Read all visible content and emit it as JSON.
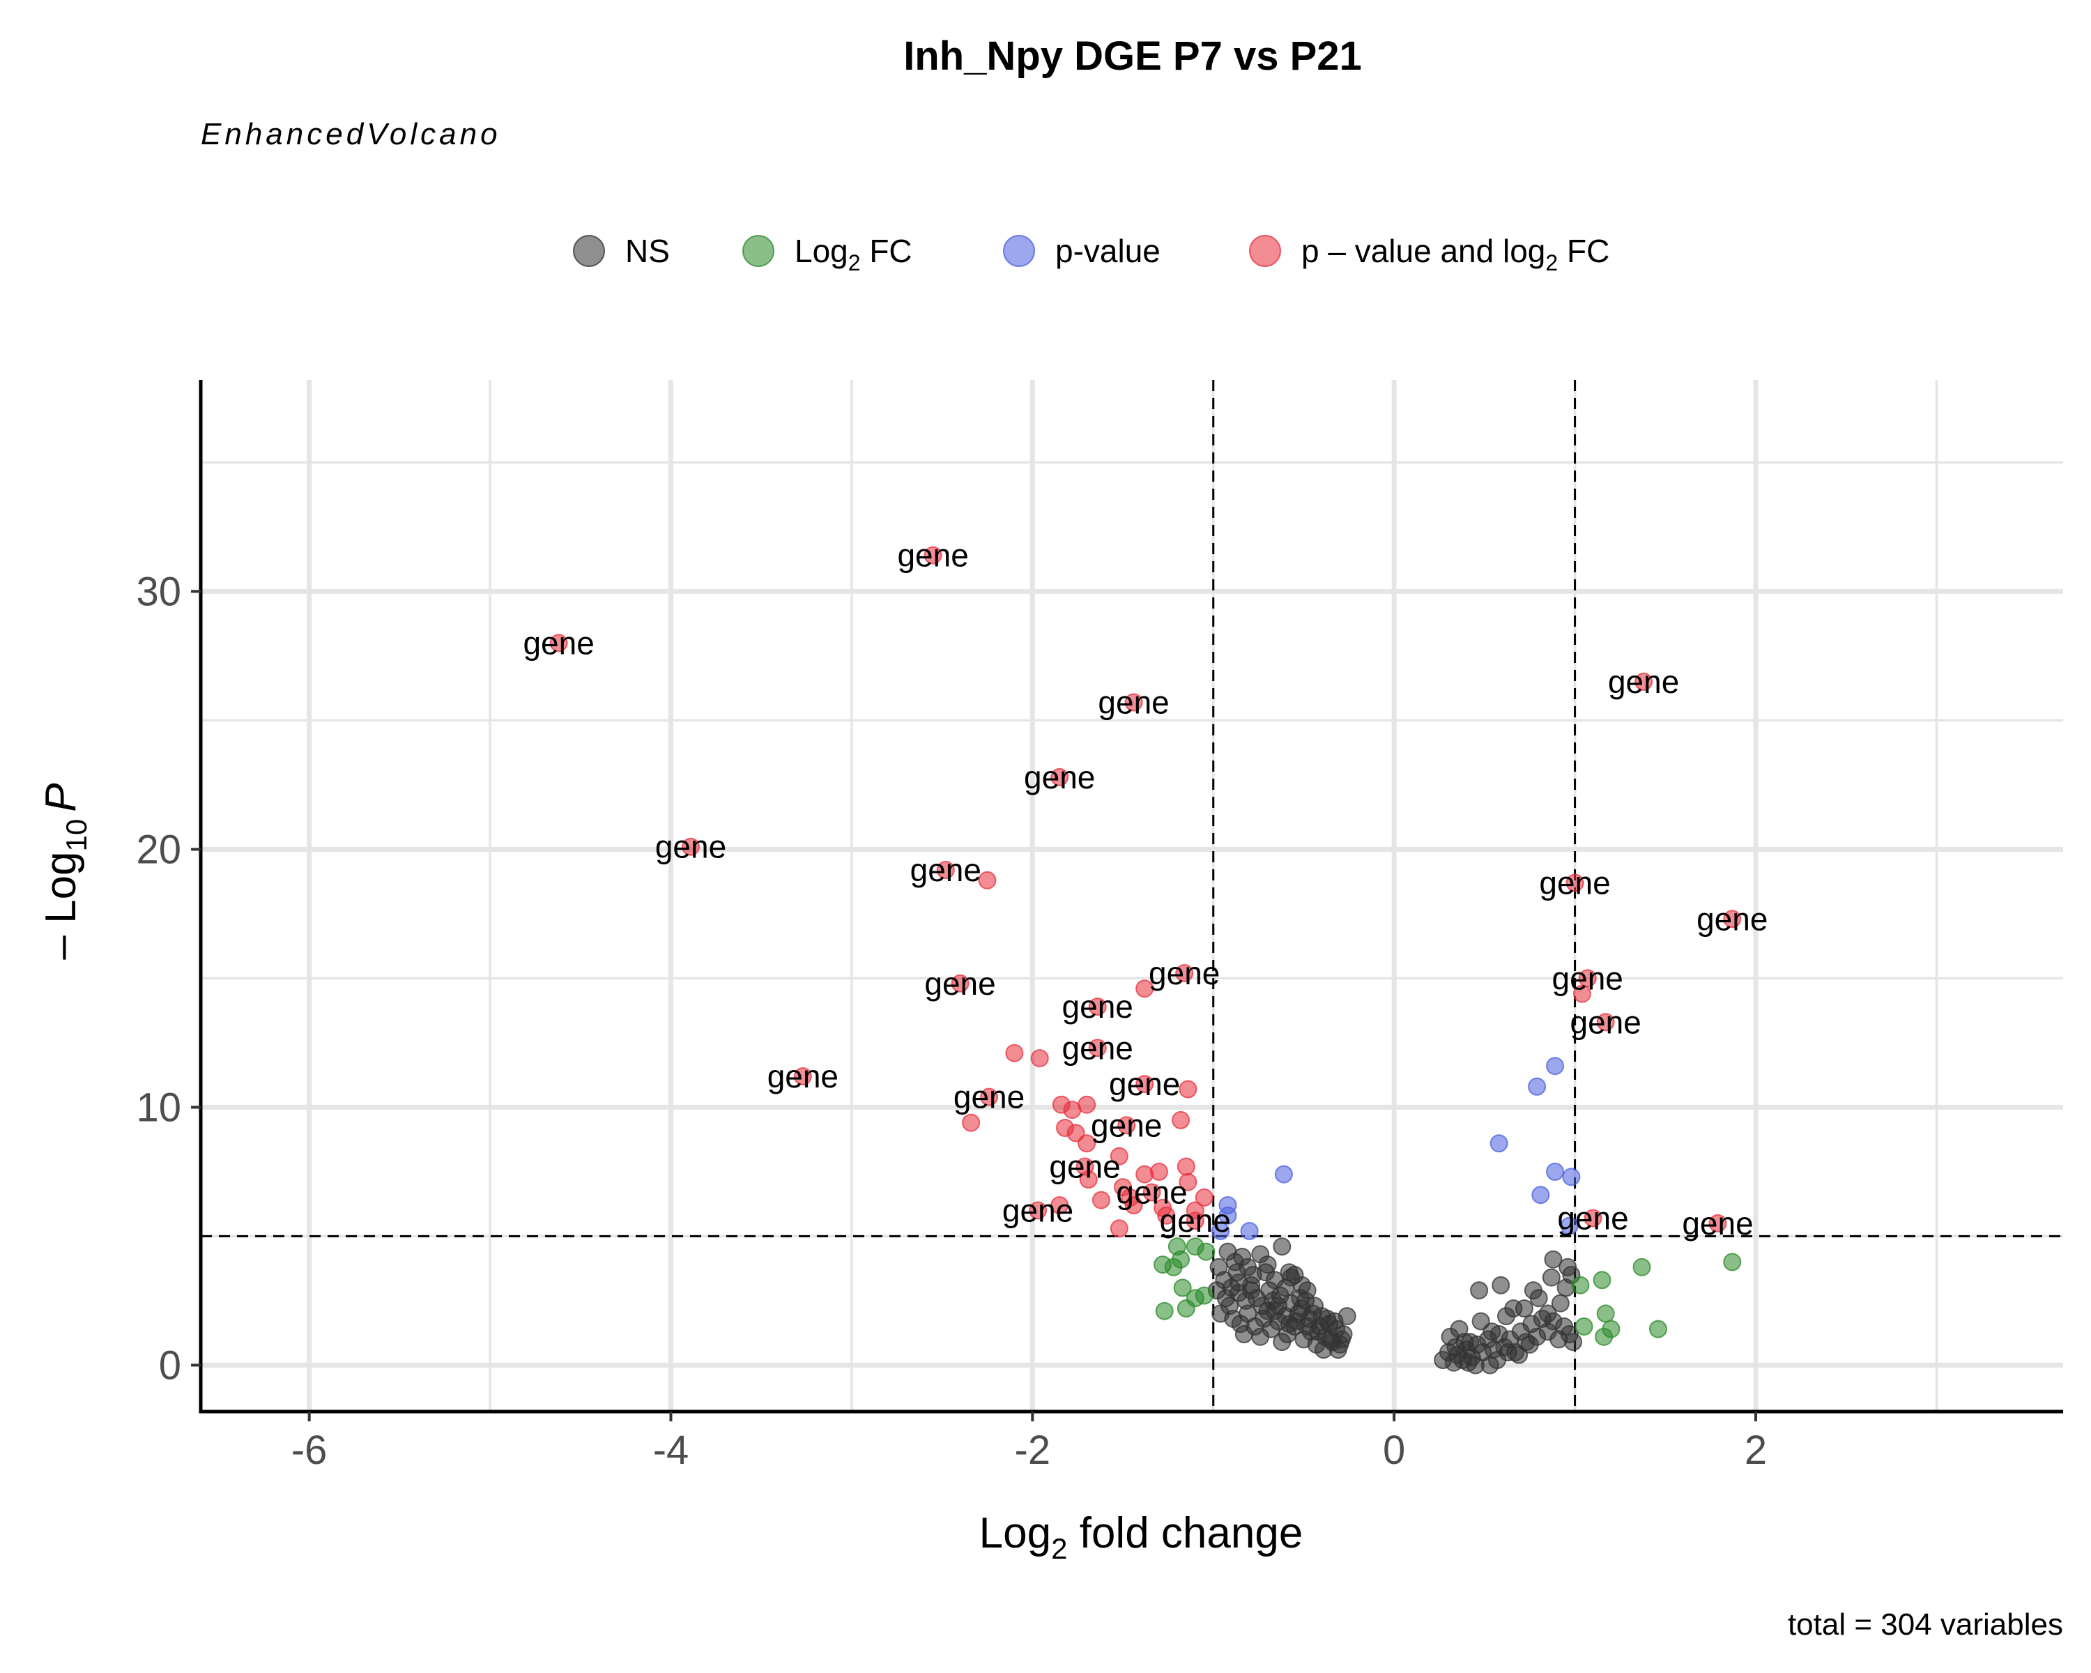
{
  "chart_data": {
    "type": "scatter",
    "title": "Inh_Npy DGE P7 vs P21",
    "subtitle": "EnhancedVolcano",
    "caption": "total = 304 variables",
    "xlabel": {
      "main": "Log",
      "sub": "2",
      "rest": " fold change"
    },
    "ylabel": {
      "prefix": "– Log",
      "sub": "10",
      "italic": "P"
    },
    "xlim": [
      -6.6,
      3.7
    ],
    "ylim": [
      -1.8,
      38.2
    ],
    "x_ticks": [
      -6,
      -4,
      -2,
      0,
      2
    ],
    "y_ticks": [
      0,
      10,
      20,
      30
    ],
    "grid": true,
    "fc_cutoff": 1,
    "p_cutoff_log10": 5,
    "colors": {
      "NS": "#333333",
      "FC": "#2a8a2a",
      "P": "#4a5fe0",
      "FC_P": "#e8303c",
      "grid": "#e5e5e5",
      "axis": "#000000"
    },
    "legend": {
      "position": "top",
      "items": [
        {
          "key": "NS",
          "label": "NS"
        },
        {
          "key": "FC",
          "label": "Log",
          "sub": "2",
          "rest": " FC"
        },
        {
          "key": "P",
          "label": "p-value"
        },
        {
          "key": "FC_P",
          "label": "p – value and log",
          "sub": "2",
          "rest": " FC"
        }
      ]
    },
    "series": [
      {
        "name": "p – value and log₂ FC",
        "key": "FC_P",
        "points": [
          {
            "x": -2.55,
            "y": 31.4,
            "label": "gene"
          },
          {
            "x": -4.62,
            "y": 28.0,
            "label": "gene"
          },
          {
            "x": -1.44,
            "y": 25.7,
            "label": "gene"
          },
          {
            "x": -1.85,
            "y": 22.8,
            "label": "gene"
          },
          {
            "x": -3.89,
            "y": 20.1,
            "label": "gene"
          },
          {
            "x": -2.48,
            "y": 19.2,
            "label": "gene"
          },
          {
            "x": -2.25,
            "y": 18.8
          },
          {
            "x": -1.16,
            "y": 15.2,
            "label": "gene"
          },
          {
            "x": -1.38,
            "y": 14.6
          },
          {
            "x": -2.4,
            "y": 14.8,
            "label": "gene"
          },
          {
            "x": -1.64,
            "y": 13.9,
            "label": "gene"
          },
          {
            "x": -2.1,
            "y": 12.1
          },
          {
            "x": -1.96,
            "y": 11.9
          },
          {
            "x": -1.64,
            "y": 12.3,
            "label": "gene"
          },
          {
            "x": -3.27,
            "y": 11.2,
            "label": "gene"
          },
          {
            "x": -1.38,
            "y": 10.9,
            "label": "gene"
          },
          {
            "x": -1.14,
            "y": 10.7
          },
          {
            "x": -2.24,
            "y": 10.4,
            "label": "gene"
          },
          {
            "x": -1.84,
            "y": 10.1
          },
          {
            "x": -1.78,
            "y": 9.9
          },
          {
            "x": -1.7,
            "y": 10.1
          },
          {
            "x": -1.18,
            "y": 9.5
          },
          {
            "x": -2.34,
            "y": 9.4
          },
          {
            "x": -1.82,
            "y": 9.2
          },
          {
            "x": -1.76,
            "y": 9.0
          },
          {
            "x": -1.48,
            "y": 9.3,
            "label": "gene"
          },
          {
            "x": -1.7,
            "y": 8.6
          },
          {
            "x": -1.52,
            "y": 8.1
          },
          {
            "x": -1.71,
            "y": 7.7,
            "label": "gene"
          },
          {
            "x": -1.38,
            "y": 7.4
          },
          {
            "x": -1.15,
            "y": 7.7
          },
          {
            "x": -1.69,
            "y": 7.2
          },
          {
            "x": -1.3,
            "y": 7.5
          },
          {
            "x": -1.14,
            "y": 7.1
          },
          {
            "x": -1.5,
            "y": 6.9
          },
          {
            "x": -1.34,
            "y": 6.7,
            "label": "gene"
          },
          {
            "x": -1.46,
            "y": 6.5
          },
          {
            "x": -1.62,
            "y": 6.4
          },
          {
            "x": -1.44,
            "y": 6.2
          },
          {
            "x": -1.28,
            "y": 6.1
          },
          {
            "x": -1.05,
            "y": 6.5
          },
          {
            "x": -1.1,
            "y": 6.0
          },
          {
            "x": -1.26,
            "y": 5.8
          },
          {
            "x": -1.85,
            "y": 6.2
          },
          {
            "x": -1.97,
            "y": 6.0,
            "label": "gene"
          },
          {
            "x": -1.52,
            "y": 5.3
          },
          {
            "x": -1.1,
            "y": 5.6,
            "label": "gene"
          },
          {
            "x": 1.38,
            "y": 26.5,
            "label": "gene"
          },
          {
            "x": 1.0,
            "y": 18.7,
            "label": "gene"
          },
          {
            "x": 1.87,
            "y": 17.3,
            "label": "gene"
          },
          {
            "x": 1.07,
            "y": 15.0,
            "label": "gene"
          },
          {
            "x": 1.04,
            "y": 14.4
          },
          {
            "x": 1.17,
            "y": 13.3,
            "label": "gene"
          },
          {
            "x": 1.1,
            "y": 5.7,
            "label": "gene"
          },
          {
            "x": 1.79,
            "y": 5.5,
            "label": "gene"
          }
        ]
      },
      {
        "name": "p-value",
        "key": "P",
        "points": [
          {
            "x": -0.61,
            "y": 7.4
          },
          {
            "x": -0.92,
            "y": 6.2
          },
          {
            "x": -0.92,
            "y": 5.8
          },
          {
            "x": -0.96,
            "y": 5.2
          },
          {
            "x": -0.8,
            "y": 5.2
          },
          {
            "x": 0.58,
            "y": 8.6
          },
          {
            "x": 0.79,
            "y": 10.8
          },
          {
            "x": 0.89,
            "y": 11.6
          },
          {
            "x": 0.89,
            "y": 7.5
          },
          {
            "x": 0.98,
            "y": 7.3
          },
          {
            "x": 0.81,
            "y": 6.6
          },
          {
            "x": 0.97,
            "y": 5.4
          }
        ]
      },
      {
        "name": "Log₂ FC",
        "key": "FC",
        "points": [
          {
            "x": -1.2,
            "y": 4.6
          },
          {
            "x": -1.1,
            "y": 4.6
          },
          {
            "x": -1.04,
            "y": 4.4
          },
          {
            "x": -1.18,
            "y": 4.1
          },
          {
            "x": -1.22,
            "y": 3.8
          },
          {
            "x": -1.28,
            "y": 3.9
          },
          {
            "x": -1.17,
            "y": 3.0
          },
          {
            "x": -1.05,
            "y": 2.7
          },
          {
            "x": -1.1,
            "y": 2.6
          },
          {
            "x": -1.15,
            "y": 2.2
          },
          {
            "x": -1.27,
            "y": 2.1
          },
          {
            "x": 1.03,
            "y": 3.1
          },
          {
            "x": 1.15,
            "y": 3.3
          },
          {
            "x": 1.37,
            "y": 3.8
          },
          {
            "x": 1.87,
            "y": 4.0
          },
          {
            "x": 1.17,
            "y": 2.0
          },
          {
            "x": 1.05,
            "y": 1.5
          },
          {
            "x": 1.2,
            "y": 1.4
          },
          {
            "x": 1.16,
            "y": 1.1
          },
          {
            "x": 1.46,
            "y": 1.4
          }
        ]
      },
      {
        "name": "NS",
        "key": "NS",
        "points": [
          {
            "x": -0.92,
            "y": 4.4
          },
          {
            "x": -0.88,
            "y": 4.0
          },
          {
            "x": -0.84,
            "y": 4.2
          },
          {
            "x": -0.81,
            "y": 3.8
          },
          {
            "x": -0.78,
            "y": 3.5
          },
          {
            "x": -0.74,
            "y": 4.3
          },
          {
            "x": -0.7,
            "y": 3.9
          },
          {
            "x": -0.66,
            "y": 3.3
          },
          {
            "x": -0.62,
            "y": 4.6
          },
          {
            "x": -0.58,
            "y": 3.6
          },
          {
            "x": -0.55,
            "y": 3.5
          },
          {
            "x": -0.51,
            "y": 3.1
          },
          {
            "x": -0.48,
            "y": 2.9
          },
          {
            "x": -0.94,
            "y": 3.3
          },
          {
            "x": -0.9,
            "y": 3.0
          },
          {
            "x": -0.86,
            "y": 2.8
          },
          {
            "x": -0.82,
            "y": 2.5
          },
          {
            "x": -0.79,
            "y": 3.1
          },
          {
            "x": -0.76,
            "y": 2.6
          },
          {
            "x": -0.73,
            "y": 2.3
          },
          {
            "x": -0.69,
            "y": 2.9
          },
          {
            "x": -0.66,
            "y": 2.1
          },
          {
            "x": -0.63,
            "y": 2.7
          },
          {
            "x": -0.6,
            "y": 1.9
          },
          {
            "x": -0.57,
            "y": 2.4
          },
          {
            "x": -0.54,
            "y": 1.7
          },
          {
            "x": -0.51,
            "y": 2.2
          },
          {
            "x": -0.48,
            "y": 1.5
          },
          {
            "x": -0.45,
            "y": 2.0
          },
          {
            "x": -0.42,
            "y": 1.3
          },
          {
            "x": -0.4,
            "y": 1.9
          },
          {
            "x": -0.38,
            "y": 1.1
          },
          {
            "x": -0.36,
            "y": 1.6
          },
          {
            "x": -0.34,
            "y": 0.9
          },
          {
            "x": -0.32,
            "y": 1.4
          },
          {
            "x": -0.3,
            "y": 0.8
          },
          {
            "x": -0.28,
            "y": 1.2
          },
          {
            "x": -0.26,
            "y": 1.9
          },
          {
            "x": -0.96,
            "y": 2.0
          },
          {
            "x": -0.93,
            "y": 2.6
          },
          {
            "x": -0.89,
            "y": 1.8
          },
          {
            "x": -0.85,
            "y": 1.6
          },
          {
            "x": -0.81,
            "y": 2.0
          },
          {
            "x": -0.77,
            "y": 1.5
          },
          {
            "x": -0.72,
            "y": 1.8
          },
          {
            "x": -0.68,
            "y": 1.4
          },
          {
            "x": -0.64,
            "y": 1.7
          },
          {
            "x": -0.59,
            "y": 1.2
          },
          {
            "x": -0.55,
            "y": 1.5
          },
          {
            "x": -0.5,
            "y": 1.0
          },
          {
            "x": -0.46,
            "y": 1.3
          },
          {
            "x": -0.43,
            "y": 0.8
          },
          {
            "x": -0.39,
            "y": 0.6
          },
          {
            "x": -0.35,
            "y": 1.0
          },
          {
            "x": -0.31,
            "y": 0.6
          },
          {
            "x": -0.52,
            "y": 2.6
          },
          {
            "x": -0.44,
            "y": 2.3
          },
          {
            "x": -0.37,
            "y": 1.8
          },
          {
            "x": -0.71,
            "y": 3.6
          },
          {
            "x": -0.6,
            "y": 3.0
          },
          {
            "x": -0.87,
            "y": 3.6
          },
          {
            "x": -0.97,
            "y": 3.8
          },
          {
            "x": -0.98,
            "y": 2.9
          },
          {
            "x": -0.83,
            "y": 1.2
          },
          {
            "x": -0.74,
            "y": 1.1
          },
          {
            "x": -0.62,
            "y": 0.9
          },
          {
            "x": -0.57,
            "y": 3.4
          },
          {
            "x": -0.67,
            "y": 2.5
          },
          {
            "x": -0.41,
            "y": 1.5
          },
          {
            "x": -0.33,
            "y": 1.7
          },
          {
            "x": -0.29,
            "y": 1.0
          },
          {
            "x": -0.47,
            "y": 1.8
          },
          {
            "x": -0.53,
            "y": 2.0
          },
          {
            "x": -0.79,
            "y": 2.9
          },
          {
            "x": -0.91,
            "y": 2.3
          },
          {
            "x": -0.86,
            "y": 3.2
          },
          {
            "x": -0.7,
            "y": 2.1
          },
          {
            "x": -0.64,
            "y": 2.3
          },
          {
            "x": -0.58,
            "y": 1.6
          },
          {
            "x": -0.49,
            "y": 2.5
          },
          {
            "x": 0.27,
            "y": 0.2
          },
          {
            "x": 0.3,
            "y": 0.5
          },
          {
            "x": 0.33,
            "y": 0.1
          },
          {
            "x": 0.35,
            "y": 0.4
          },
          {
            "x": 0.38,
            "y": 0.2
          },
          {
            "x": 0.4,
            "y": 0.6
          },
          {
            "x": 0.43,
            "y": 0.3
          },
          {
            "x": 0.46,
            "y": 0.8
          },
          {
            "x": 0.49,
            "y": 0.5
          },
          {
            "x": 0.52,
            "y": 1.0
          },
          {
            "x": 0.55,
            "y": 0.6
          },
          {
            "x": 0.58,
            "y": 1.2
          },
          {
            "x": 0.61,
            "y": 0.7
          },
          {
            "x": 0.64,
            "y": 1.0
          },
          {
            "x": 0.67,
            "y": 0.5
          },
          {
            "x": 0.7,
            "y": 1.3
          },
          {
            "x": 0.73,
            "y": 0.9
          },
          {
            "x": 0.76,
            "y": 1.6
          },
          {
            "x": 0.79,
            "y": 1.1
          },
          {
            "x": 0.82,
            "y": 1.8
          },
          {
            "x": 0.85,
            "y": 1.3
          },
          {
            "x": 0.88,
            "y": 1.7
          },
          {
            "x": 0.91,
            "y": 1.0
          },
          {
            "x": 0.94,
            "y": 1.5
          },
          {
            "x": 0.97,
            "y": 1.2
          },
          {
            "x": 0.99,
            "y": 0.9
          },
          {
            "x": 0.31,
            "y": 1.1
          },
          {
            "x": 0.36,
            "y": 1.4
          },
          {
            "x": 0.42,
            "y": 0.9
          },
          {
            "x": 0.48,
            "y": 1.7
          },
          {
            "x": 0.54,
            "y": 1.3
          },
          {
            "x": 0.62,
            "y": 1.9
          },
          {
            "x": 0.72,
            "y": 2.2
          },
          {
            "x": 0.8,
            "y": 2.6
          },
          {
            "x": 0.87,
            "y": 3.4
          },
          {
            "x": 0.95,
            "y": 3.0
          },
          {
            "x": 0.98,
            "y": 3.5
          },
          {
            "x": 0.92,
            "y": 2.4
          },
          {
            "x": 0.85,
            "y": 2.0
          },
          {
            "x": 0.66,
            "y": 2.2
          },
          {
            "x": 0.59,
            "y": 3.1
          },
          {
            "x": 0.47,
            "y": 2.9
          },
          {
            "x": 0.96,
            "y": 3.8
          },
          {
            "x": 0.88,
            "y": 4.1
          },
          {
            "x": 0.77,
            "y": 2.9
          },
          {
            "x": 0.41,
            "y": 0.1
          },
          {
            "x": 0.57,
            "y": 0.2
          },
          {
            "x": 0.69,
            "y": 0.4
          },
          {
            "x": 0.45,
            "y": 0.0
          },
          {
            "x": 0.53,
            "y": 0.0
          },
          {
            "x": 0.34,
            "y": 0.7
          },
          {
            "x": 0.39,
            "y": 0.9
          },
          {
            "x": 0.63,
            "y": 0.5
          },
          {
            "x": 0.75,
            "y": 0.8
          }
        ]
      }
    ]
  }
}
